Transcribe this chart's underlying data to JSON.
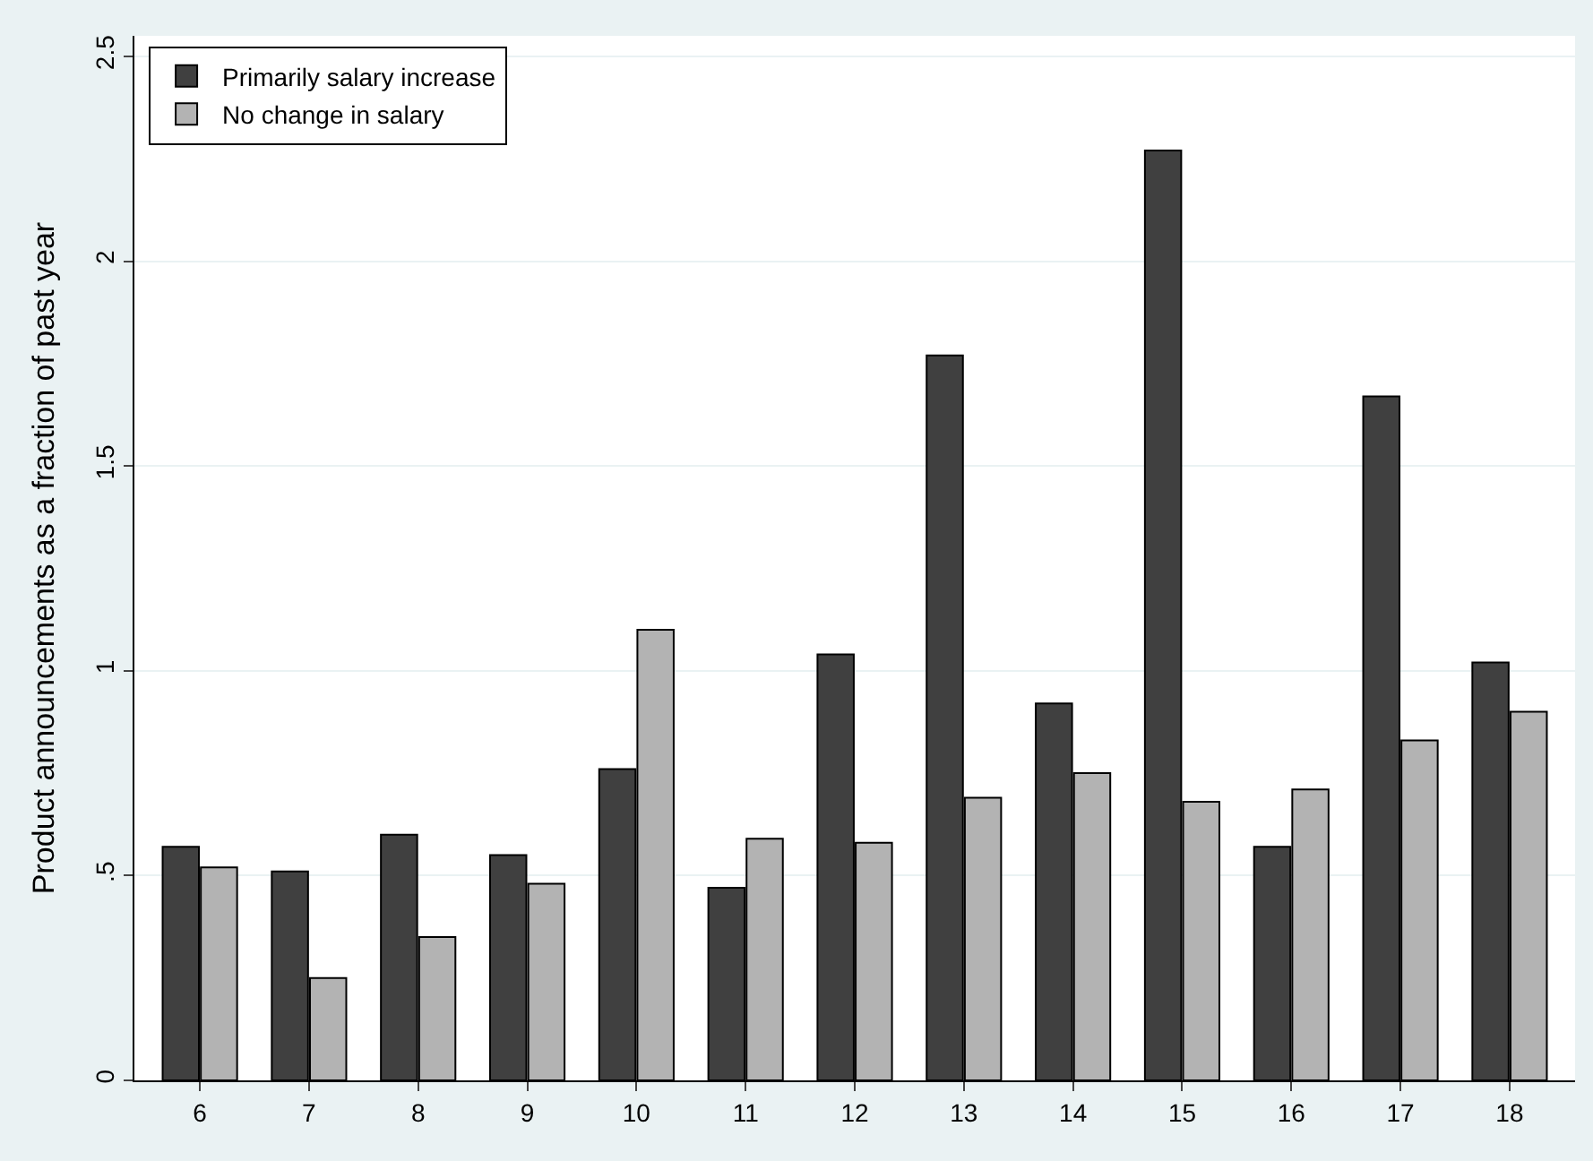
{
  "chart_data": {
    "type": "bar",
    "ylabel": "Product announcements as a fraction of past year",
    "categories": [
      "6",
      "7",
      "8",
      "9",
      "10",
      "11",
      "12",
      "13",
      "14",
      "15",
      "16",
      "17",
      "18"
    ],
    "series": [
      {
        "name": "Primarily salary increase",
        "color": "#404040",
        "values": [
          0.57,
          0.51,
          0.6,
          0.55,
          0.76,
          0.47,
          1.04,
          1.77,
          0.92,
          2.27,
          0.57,
          1.67,
          1.02
        ]
      },
      {
        "name": "No change in salary",
        "color": "#b3b3b3",
        "values": [
          0.52,
          0.25,
          0.35,
          0.48,
          1.1,
          0.59,
          0.58,
          0.69,
          0.75,
          0.68,
          0.71,
          0.83,
          0.9
        ]
      }
    ],
    "ylim": [
      0,
      2.55
    ],
    "yticks": [
      0,
      {
        "value": 0.5,
        "label": ".5"
      },
      1,
      1.5,
      2,
      2.5
    ],
    "grid": "y",
    "legend": "top left"
  }
}
